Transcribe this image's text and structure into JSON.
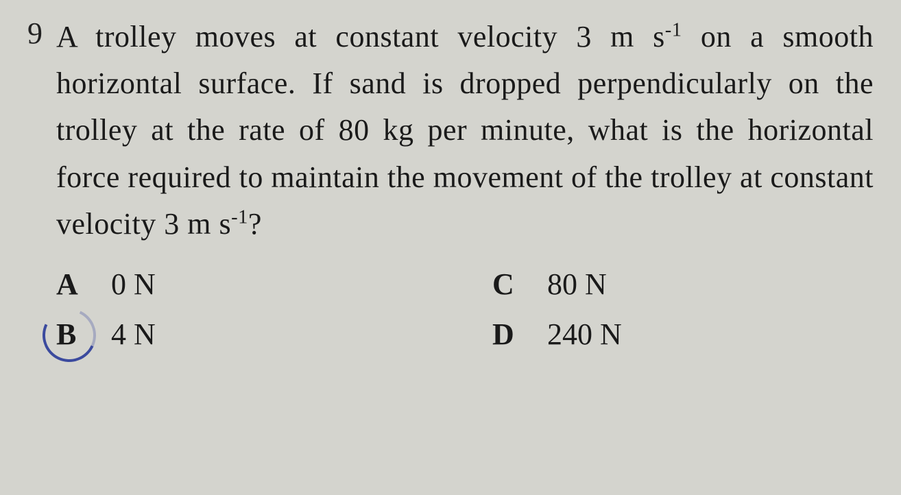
{
  "question": {
    "number": "9",
    "text_parts": {
      "p1": "A trolley moves at constant velocity 3 m s",
      "exp1": "-1",
      "p2": " on a smooth horizontal surface. If sand is dropped perpendicularly on the trolley at the rate of 80 kg per minute, what is the horizontal force required to maintain the movement of the trolley at constant velocity 3 m s",
      "exp2": "-1",
      "p3": "?"
    }
  },
  "options": {
    "a": {
      "letter": "A",
      "value": "0 N"
    },
    "b": {
      "letter": "B",
      "value": "4 N",
      "circled": true
    },
    "c": {
      "letter": "C",
      "value": "80 N"
    },
    "d": {
      "letter": "D",
      "value": "240 N"
    }
  },
  "style": {
    "background_color": "#d4d4ce",
    "text_color": "#1a1a1a",
    "circle_color": "#3b4a9e",
    "font_family": "Times New Roman",
    "question_fontsize": 44,
    "option_fontsize": 44,
    "line_height": 1.55
  }
}
